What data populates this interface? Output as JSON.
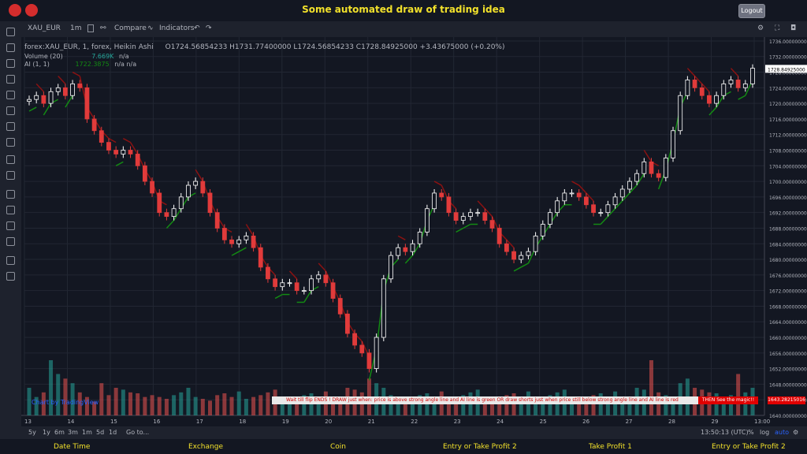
{
  "page_title": "Some automated draw of trading idea",
  "logout_label": "Logout",
  "toolbar": {
    "symbol": "XAU_EUR",
    "interval": "1m",
    "compare": "Compare",
    "indicators": "Indicators"
  },
  "legend": {
    "series_title": "forex:XAU_EUR, 1, forex, Heikin Ashi",
    "ohlc": "O1724.56854233  H1731.77400000  L1724.56854233  C1728.84925000  +3.43675000 (+0.20%)",
    "volume_label": "Volume (20)",
    "volume_value": "7.669K",
    "volume_na": "n/a",
    "ai_label": "AI (1, 1)",
    "ai_value": "1722.3875",
    "ai_na": "n/a  n/a"
  },
  "watermark": "Chart by TradingView",
  "banner": {
    "text": "Wait till flip ENDS  !  DRAW just when:  price is above strong angle line and AI line is green       OR       draw shorts just when price still below strong angle line and AI line is red",
    "right": "THEN See the magic!!",
    "price_tag": "1643.28215016"
  },
  "bottom": {
    "ranges": [
      "5y",
      "1y",
      "6m",
      "3m",
      "1m",
      "5d",
      "1d"
    ],
    "goto": "Go to...",
    "time": "13:50:13 (UTC)",
    "pct": "%",
    "log": "log",
    "auto": "auto"
  },
  "footer_headers": [
    "Date Time",
    "Exchange",
    "Coin",
    "Entry or Take Profit 2",
    "Take Profit 1",
    "Entry or Take Profit 2"
  ],
  "colors": {
    "up": "#ffffff",
    "down": "#e13b3b",
    "ai_green": "#138a13",
    "ai_red": "#8a1212",
    "banner": "#e00000"
  },
  "chart_data": {
    "type": "line",
    "x_ticks": [
      "13",
      "14",
      "15",
      "16",
      "17",
      "18",
      "19",
      "20",
      "21",
      "22",
      "23",
      "24",
      "25",
      "26",
      "27",
      "28",
      "29",
      "13:00"
    ],
    "y_ticks": [
      1640,
      1644,
      1648,
      1652,
      1656,
      1660,
      1664,
      1668,
      1672,
      1676,
      1680,
      1684,
      1688,
      1692,
      1696,
      1700,
      1704,
      1708,
      1712,
      1716,
      1720,
      1724,
      1728,
      1732,
      1736
    ],
    "ylim": [
      1640,
      1737
    ],
    "last_price": "1728.84925000",
    "series": [
      {
        "values": [
          1721,
          1722,
          1720,
          1723,
          1724,
          1722,
          1725,
          1724,
          1716,
          1713,
          1710,
          1708,
          1707,
          1708,
          1707,
          1704,
          1700,
          1697,
          1692,
          1691,
          1693,
          1696,
          1699,
          1700,
          1697,
          1692,
          1688,
          1685,
          1684,
          1685,
          1686,
          1683,
          1678,
          1675,
          1673,
          1674,
          1674,
          1672,
          1672,
          1675,
          1676,
          1674,
          1670,
          1666,
          1661,
          1658,
          1656,
          1652,
          1660,
          1675,
          1681,
          1683,
          1682,
          1684,
          1687,
          1693,
          1697,
          1696,
          1692,
          1690,
          1691,
          1692,
          1692,
          1690,
          1688,
          1684,
          1682,
          1680,
          1681,
          1682,
          1686,
          1689,
          1692,
          1695,
          1697,
          1697,
          1696,
          1694,
          1692,
          1692,
          1694,
          1696,
          1698,
          1700,
          1702,
          1705,
          1702,
          1701,
          1706,
          1713,
          1722,
          1726,
          1724,
          1722,
          1720,
          1722,
          1725,
          1726,
          1724,
          1725,
          1729
        ]
      }
    ],
    "volume": [
      30,
      20,
      25,
      60,
      45,
      40,
      35,
      25,
      20,
      15,
      35,
      22,
      30,
      28,
      25,
      24,
      20,
      22,
      20,
      18,
      22,
      25,
      30,
      20,
      18,
      16,
      22,
      24,
      20,
      26,
      18,
      20,
      22,
      25,
      28,
      20,
      18,
      16,
      22,
      24,
      20,
      26,
      18,
      20,
      30,
      28,
      25,
      40,
      35,
      30,
      22,
      20,
      18,
      16,
      22,
      24,
      20,
      26,
      18,
      20,
      22,
      25,
      28,
      20,
      18,
      16,
      22,
      24,
      20,
      26,
      18,
      20,
      22,
      25,
      28,
      20,
      18,
      16,
      22,
      24,
      20,
      26,
      18,
      20,
      30,
      28,
      60,
      25,
      22,
      20,
      35,
      40,
      30,
      28,
      25,
      24,
      20,
      22,
      45,
      25,
      30
    ]
  }
}
